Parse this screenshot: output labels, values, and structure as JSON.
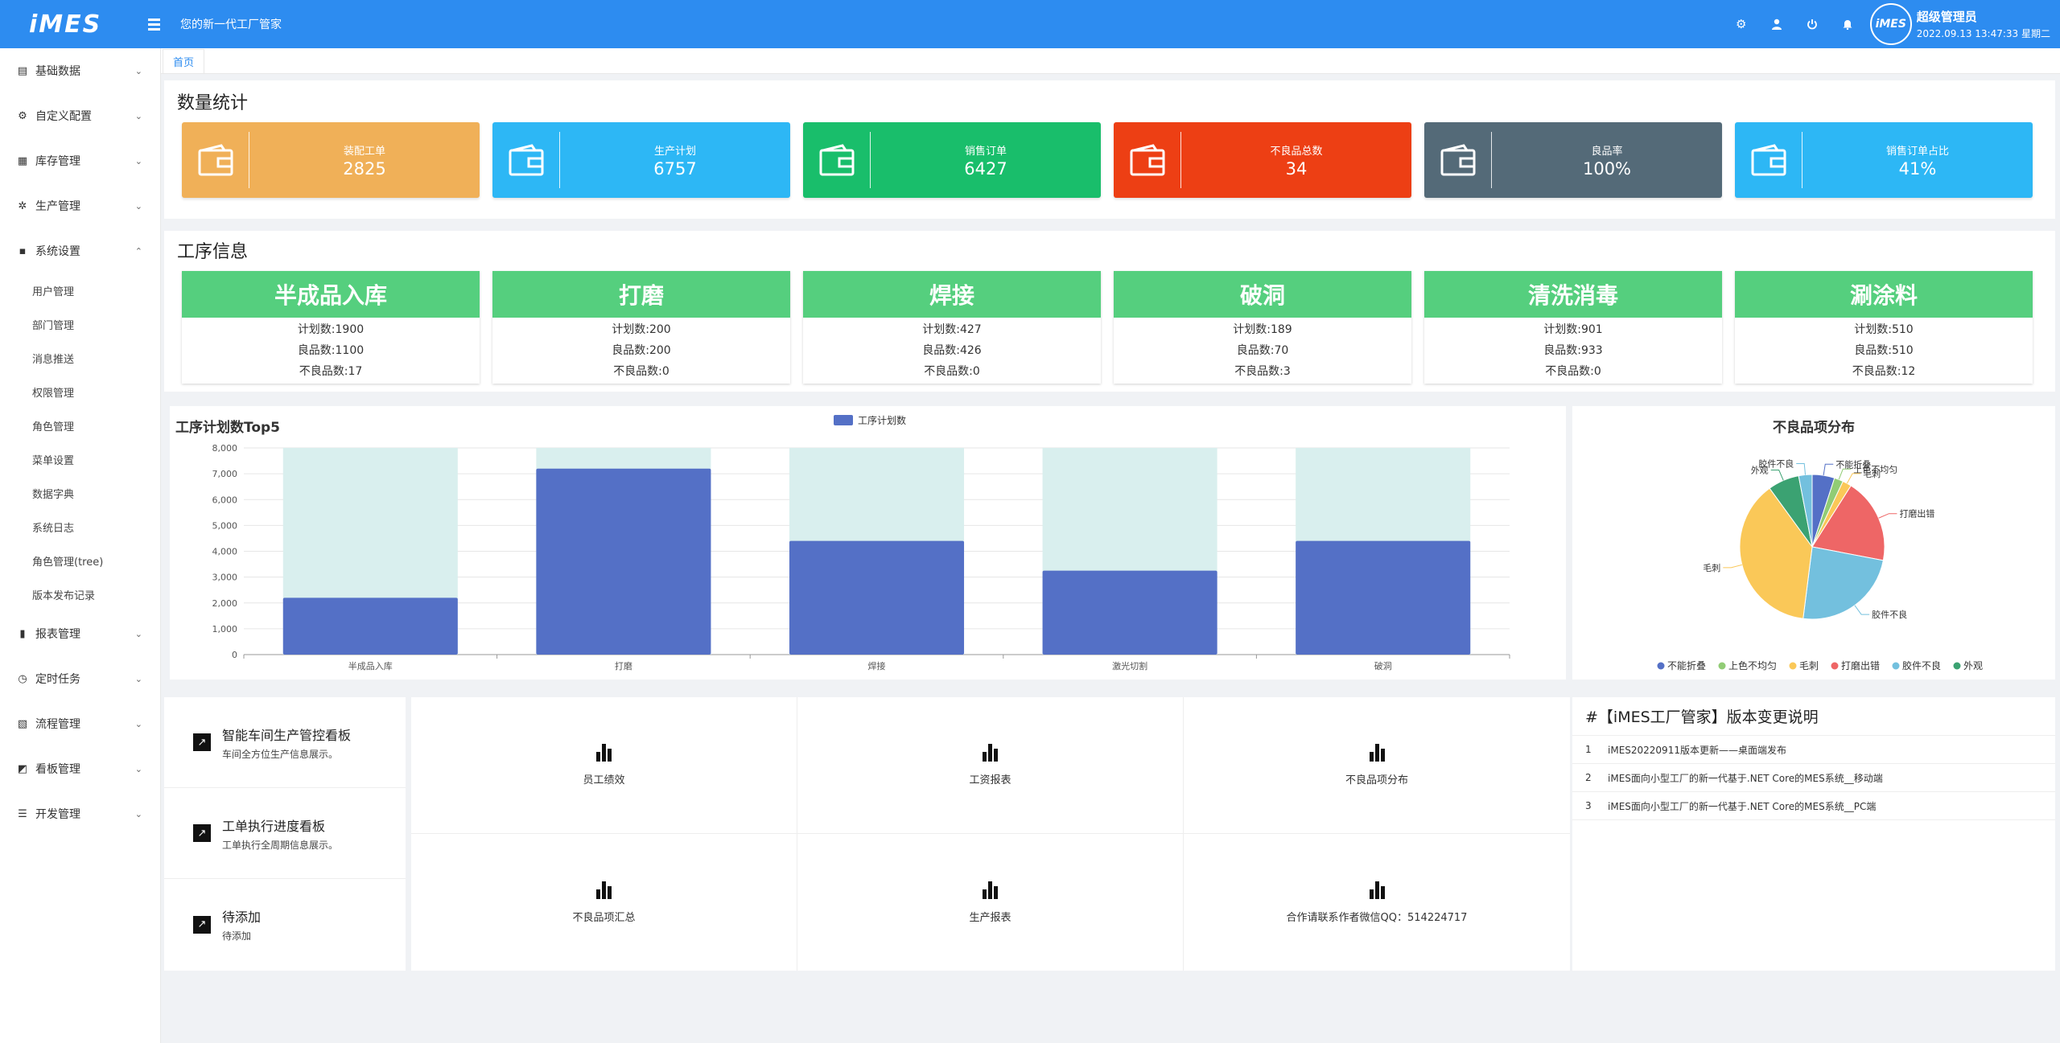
{
  "header": {
    "logo": "iMES",
    "slogan": "您的新一代工厂管家",
    "avatar_text": "iMES",
    "user_name": "超级管理员",
    "datetime": "2022.09.13 13:47:33 星期二",
    "icons": [
      "gear-icon",
      "user-icon",
      "power-icon",
      "bell-icon"
    ]
  },
  "sidebar": {
    "items": [
      {
        "label": "基础数据",
        "icon": "document-icon"
      },
      {
        "label": "自定义配置",
        "icon": "settings-icon"
      },
      {
        "label": "库存管理",
        "icon": "inventory-icon"
      },
      {
        "label": "生产管理",
        "icon": "gear-icon"
      },
      {
        "label": "系统设置",
        "icon": "grid-icon"
      },
      {
        "label": "报表管理",
        "icon": "bar-chart-icon"
      },
      {
        "label": "定时任务",
        "icon": "clock-icon"
      },
      {
        "label": "流程管理",
        "icon": "flow-icon"
      },
      {
        "label": "看板管理",
        "icon": "board-icon"
      },
      {
        "label": "开发管理",
        "icon": "sliders-icon"
      }
    ],
    "subitems": [
      "用户管理",
      "部门管理",
      "消息推送",
      "权限管理",
      "角色管理",
      "菜单设置",
      "数据字典",
      "系统日志",
      "角色管理(tree)",
      "版本发布记录"
    ]
  },
  "tabs": {
    "home": "首页"
  },
  "stats": {
    "title": "数量统计",
    "cards": [
      {
        "label": "装配工单",
        "value": "2825",
        "color": "#f0b058"
      },
      {
        "label": "生产计划",
        "value": "6757",
        "color": "#2db7f5"
      },
      {
        "label": "销售订单",
        "value": "6427",
        "color": "#19be6b"
      },
      {
        "label": "不良品总数",
        "value": "34",
        "color": "#ed3f14"
      },
      {
        "label": "良品率",
        "value": "100%",
        "color": "#546a78"
      },
      {
        "label": "销售订单占比",
        "value": "41%",
        "color": "#2db7f5"
      }
    ]
  },
  "process": {
    "title": "工序信息",
    "cards": [
      {
        "name": "半成品入库",
        "plan": "计划数:1900",
        "good": "良品数:1100",
        "bad": "不良品数:17"
      },
      {
        "name": "打磨",
        "plan": "计划数:200",
        "good": "良品数:200",
        "bad": "不良品数:0"
      },
      {
        "name": "焊接",
        "plan": "计划数:427",
        "good": "良品数:426",
        "bad": "不良品数:0"
      },
      {
        "name": "破洞",
        "plan": "计划数:189",
        "good": "良品数:70",
        "bad": "不良品数:3"
      },
      {
        "name": "清洗消毒",
        "plan": "计划数:901",
        "good": "良品数:933",
        "bad": "不良品数:0"
      },
      {
        "name": "涮涂料",
        "plan": "计划数:510",
        "good": "良品数:510",
        "bad": "不良品数:12"
      }
    ]
  },
  "chart_data": [
    {
      "type": "bar",
      "title": "工序计划数Top5",
      "legend": "工序计划数",
      "categories": [
        "半成品入库",
        "打磨",
        "焊接",
        "激光切割",
        "破洞"
      ],
      "values": [
        2200,
        7200,
        4400,
        3250,
        4400
      ],
      "background_max": 8000,
      "ylim": [
        0,
        8000
      ],
      "yticks": [
        "0",
        "1,000",
        "2,000",
        "3,000",
        "4,000",
        "5,000",
        "6,000",
        "7,000",
        "8,000"
      ],
      "bar_color": "#5470c6",
      "bg_color": "#d9efee"
    },
    {
      "type": "pie",
      "title": "不良品项分布",
      "slices": [
        {
          "name": "不能折叠",
          "value": 5,
          "color": "#5470c6"
        },
        {
          "name": "上色不均匀",
          "value": 2,
          "color": "#91cc75"
        },
        {
          "name": "毛刺",
          "value": 2,
          "color": "#fac858"
        },
        {
          "name": "打磨出错",
          "value": 19,
          "color": "#ee6666"
        },
        {
          "name": "胶件不良",
          "value": 24,
          "color": "#73c0de"
        },
        {
          "name": "毛刺",
          "value": 38,
          "color": "#fac858"
        },
        {
          "name": "外观",
          "value": 7,
          "color": "#3ba272"
        },
        {
          "name": "胶件不良",
          "value": 3,
          "color": "#73c0de"
        }
      ],
      "legend": [
        {
          "name": "不能折叠",
          "color": "#5470c6"
        },
        {
          "name": "上色不均匀",
          "color": "#91cc75"
        },
        {
          "name": "毛刺",
          "color": "#fac858"
        },
        {
          "name": "打磨出错",
          "color": "#ee6666"
        },
        {
          "name": "胶件不良",
          "color": "#73c0de"
        },
        {
          "name": "外观",
          "color": "#3ba272"
        }
      ]
    }
  ],
  "boards": [
    {
      "title": "智能车间生产管控看板",
      "sub": "车间全方位生产信息展示。"
    },
    {
      "title": "工单执行进度看板",
      "sub": "工单执行全周期信息展示。"
    },
    {
      "title": "待添加",
      "sub": "待添加"
    }
  ],
  "reports": [
    "员工绩效",
    "工资报表",
    "不良品项分布",
    "不良品项汇总",
    "生产报表",
    "合作请联系作者微信QQ：514224717"
  ],
  "versions": {
    "title": "#【iMES工厂管家】版本变更说明",
    "rows": [
      {
        "idx": "1",
        "text": "iMES20220911版本更新——桌面端发布"
      },
      {
        "idx": "2",
        "text": "iMES面向小型工厂的新一代基于.NET Core的MES系统__移动端"
      },
      {
        "idx": "3",
        "text": "iMES面向小型工厂的新一代基于.NET Core的MES系统__PC端"
      }
    ]
  }
}
